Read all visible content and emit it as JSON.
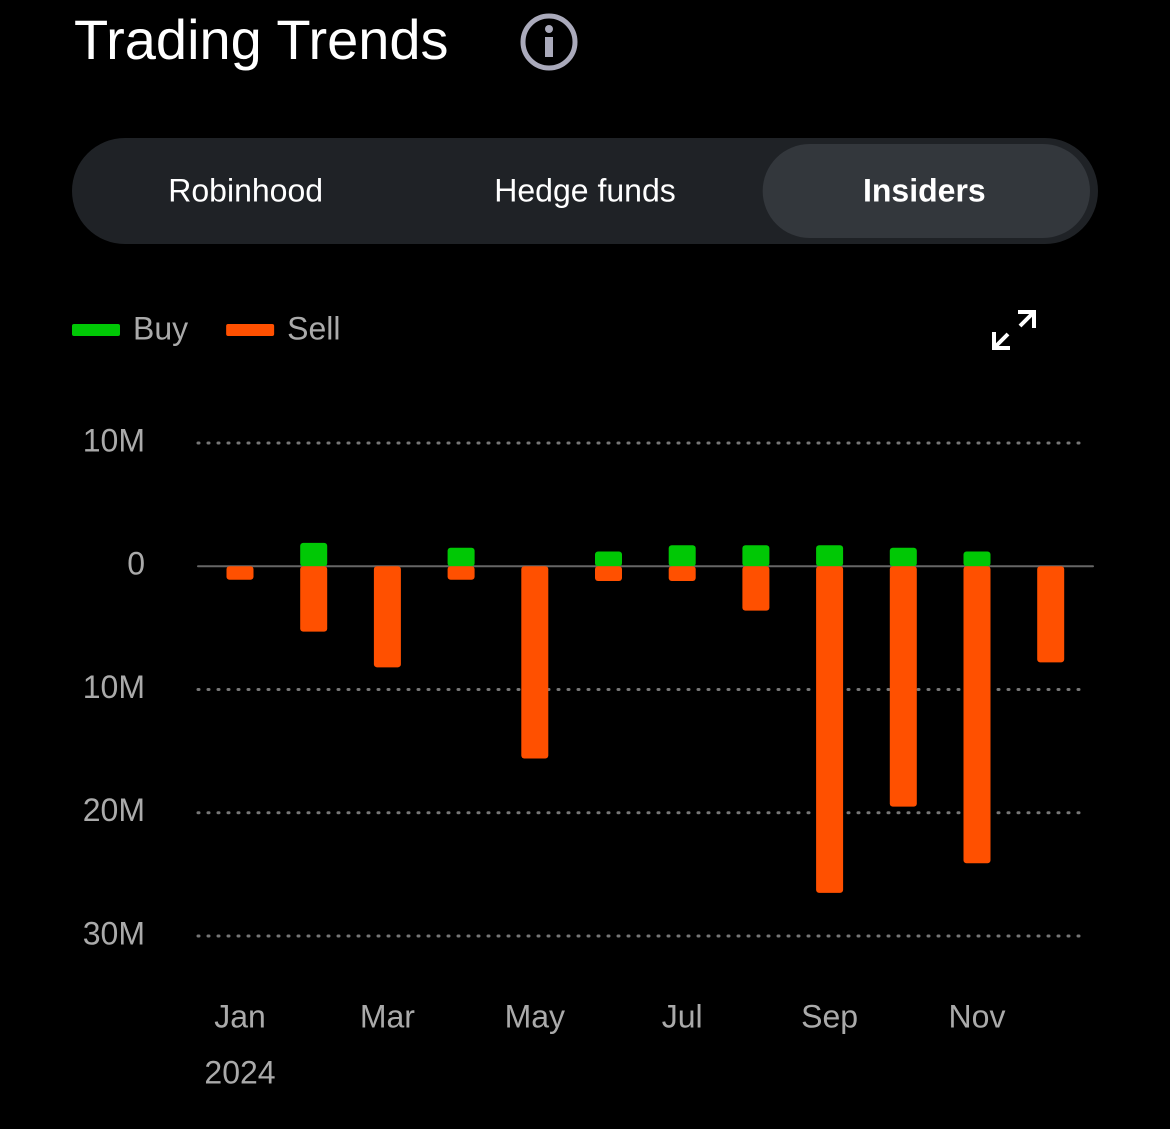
{
  "header": {
    "title": "Trading Trends"
  },
  "tabs": {
    "items": [
      "Robinhood",
      "Hedge funds",
      "Insiders"
    ],
    "selected": 2
  },
  "chart_data": {
    "type": "bar",
    "categories": [
      "Jan",
      null,
      "Mar",
      null,
      "May",
      null,
      "Jul",
      null,
      "Sep",
      null,
      "Nov",
      null
    ],
    "x_sublabel": "2024",
    "series": [
      {
        "name": "Buy",
        "color": "#00c805",
        "values": [
          null,
          1900000,
          null,
          1500000,
          null,
          1200000,
          1700000,
          1700000,
          1700000,
          1500000,
          1200000,
          null
        ]
      },
      {
        "name": "Sell",
        "color": "#ff5000",
        "values": [
          -1100000,
          -5300000,
          -8200000,
          -1100000,
          -15600000,
          -1200000,
          -1200000,
          -3600000,
          -26500000,
          -19500000,
          -24100000,
          -7800000
        ]
      }
    ],
    "ylim": [
      -30000000,
      10000000
    ],
    "yticks": [
      {
        "value": 10000000,
        "label": "10M"
      },
      0,
      {
        "value": -10000000,
        "label": "10M"
      },
      {
        "value": -20000000,
        "label": "20M"
      },
      {
        "value": -30000000,
        "label": "30M"
      }
    ],
    "grid": true
  }
}
